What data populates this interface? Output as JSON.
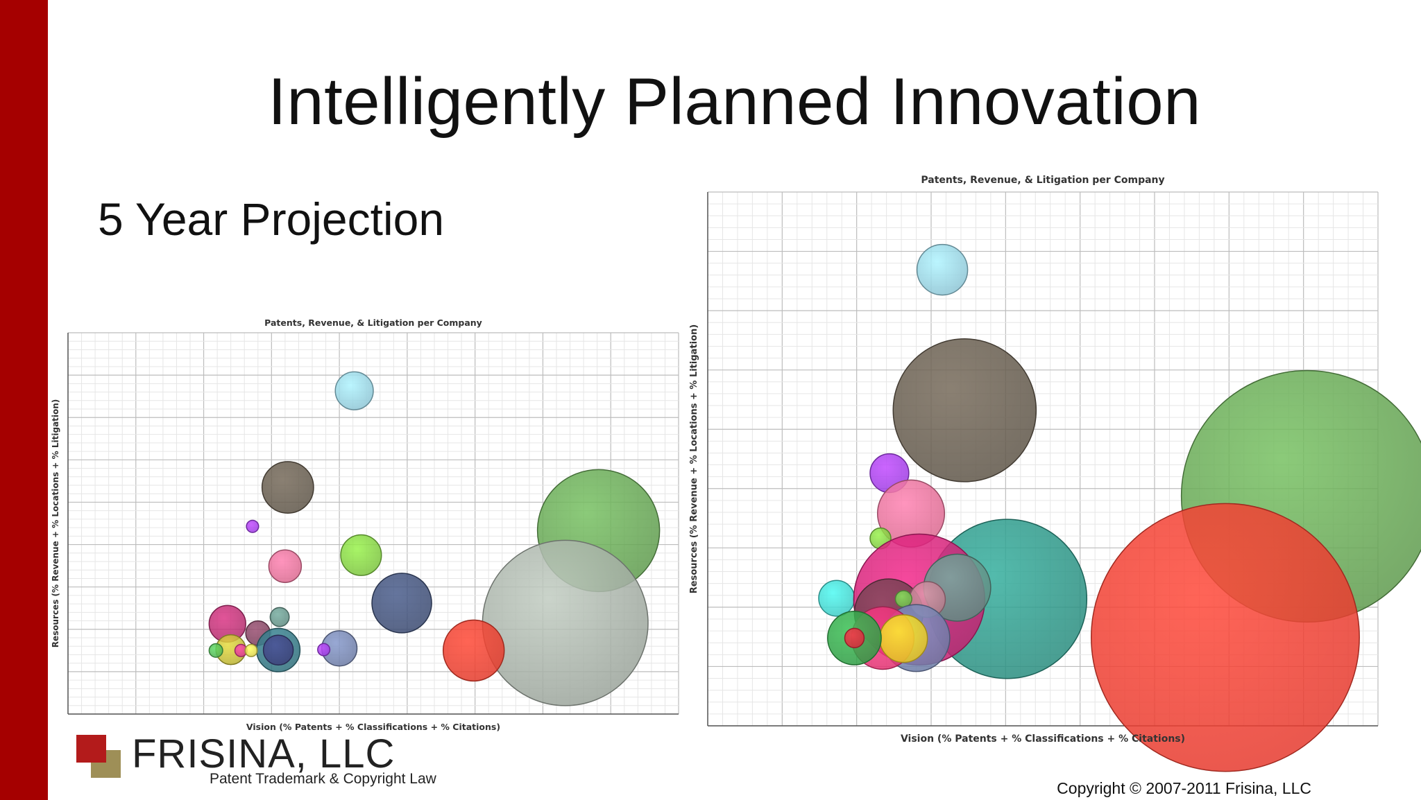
{
  "slide": {
    "title": "Intelligently Planned Innovation",
    "subtitle": "5 Year Projection",
    "copyright": "Copyright © 2007-2011 Frisina, LLC"
  },
  "logo": {
    "name": "FRISINA, LLC",
    "tagline": "Patent Trademark & Copyright Law"
  },
  "colors": {
    "accent_bar": "#a50000",
    "logo_red": "#b31b1b",
    "logo_gold": "#9e8f57"
  },
  "chart_data": [
    {
      "type": "scatter",
      "variant": "bubble",
      "title": "Patents, Revenue, & Litigation per Company",
      "xlabel": "Vision (% Patents + % Classifications + % Citations)",
      "ylabel": "Resources (% Revenue + % Locations + % Litigation)",
      "xlim": [
        0,
        9
      ],
      "ylim": [
        0,
        9
      ],
      "grid": true,
      "tick_labels_shown": false,
      "points": [
        {
          "x": 4.22,
          "y": 7.63,
          "size": 0.28,
          "color": "#8cc3d3"
        },
        {
          "x": 3.24,
          "y": 5.35,
          "size": 0.38,
          "color": "#5e5548"
        },
        {
          "x": 2.72,
          "y": 4.43,
          "size": 0.09,
          "color": "#9b3be0"
        },
        {
          "x": 4.32,
          "y": 3.75,
          "size": 0.3,
          "color": "#7ac23d"
        },
        {
          "x": 3.2,
          "y": 3.49,
          "size": 0.24,
          "color": "#d9688e"
        },
        {
          "x": 7.82,
          "y": 4.33,
          "size": 0.9,
          "color": "#5f9a4e"
        },
        {
          "x": 7.33,
          "y": 2.15,
          "size": 1.22,
          "color": "#9aa39a"
        },
        {
          "x": 4.92,
          "y": 2.62,
          "size": 0.44,
          "color": "#3b4a70"
        },
        {
          "x": 5.98,
          "y": 1.5,
          "size": 0.45,
          "color": "#e23a2b"
        },
        {
          "x": 4.0,
          "y": 1.55,
          "size": 0.26,
          "color": "#6b7aa3"
        },
        {
          "x": 3.12,
          "y": 2.29,
          "size": 0.14,
          "color": "#5e8a80"
        },
        {
          "x": 2.35,
          "y": 2.13,
          "size": 0.27,
          "color": "#b02b6b"
        },
        {
          "x": 2.8,
          "y": 1.91,
          "size": 0.18,
          "color": "#7a3e5a"
        },
        {
          "x": 3.1,
          "y": 1.51,
          "size": 0.32,
          "color": "#2f6e7a"
        },
        {
          "x": 3.1,
          "y": 1.51,
          "size": 0.22,
          "color": "#3b3f78"
        },
        {
          "x": 2.4,
          "y": 1.52,
          "size": 0.22,
          "color": "#b8b032"
        },
        {
          "x": 2.18,
          "y": 1.5,
          "size": 0.1,
          "color": "#4caf50"
        },
        {
          "x": 2.55,
          "y": 1.5,
          "size": 0.09,
          "color": "#d63a8a"
        },
        {
          "x": 2.7,
          "y": 1.5,
          "size": 0.09,
          "color": "#d9d04a"
        },
        {
          "x": 3.77,
          "y": 1.52,
          "size": 0.09,
          "color": "#9b3be0"
        }
      ]
    },
    {
      "type": "scatter",
      "variant": "bubble",
      "title": "Patents, Revenue, & Litigation per Company",
      "xlabel": "Vision (% Patents + % Classifications + % Citations)",
      "ylabel": "Resources (% Revenue + % Locations + % Litigation)",
      "xlim": [
        0,
        9
      ],
      "ylim": [
        0,
        9
      ],
      "grid": true,
      "tick_labels_shown": false,
      "points": [
        {
          "x": 3.15,
          "y": 7.69,
          "size": 0.34,
          "color": "#8cc3d3"
        },
        {
          "x": 3.45,
          "y": 5.32,
          "size": 0.96,
          "color": "#5e5548"
        },
        {
          "x": 2.44,
          "y": 4.26,
          "size": 0.26,
          "color": "#9b3be0"
        },
        {
          "x": 2.73,
          "y": 3.58,
          "size": 0.45,
          "color": "#d9688e"
        },
        {
          "x": 2.32,
          "y": 3.16,
          "size": 0.14,
          "color": "#7ac23d"
        },
        {
          "x": 8.05,
          "y": 3.87,
          "size": 1.69,
          "color": "#5f9a4e"
        },
        {
          "x": 6.95,
          "y": 1.49,
          "size": 1.8,
          "color": "#e53a2e"
        },
        {
          "x": 4.02,
          "y": 2.14,
          "size": 1.07,
          "color": "#2a8c7e"
        },
        {
          "x": 1.73,
          "y": 2.15,
          "size": 0.24,
          "color": "#3ec9c2"
        },
        {
          "x": 2.84,
          "y": 2.13,
          "size": 0.88,
          "color": "#c2206f"
        },
        {
          "x": 3.35,
          "y": 2.33,
          "size": 0.45,
          "color": "#5e8a80"
        },
        {
          "x": 2.43,
          "y": 1.9,
          "size": 0.46,
          "color": "#6b3a4a"
        },
        {
          "x": 2.95,
          "y": 2.13,
          "size": 0.24,
          "color": "#b57a8a"
        },
        {
          "x": 2.63,
          "y": 2.14,
          "size": 0.11,
          "color": "#6dbb4a"
        },
        {
          "x": 2.8,
          "y": 1.48,
          "size": 0.45,
          "color": "#6b7aa3"
        },
        {
          "x": 2.35,
          "y": 1.48,
          "size": 0.42,
          "color": "#e0306f"
        },
        {
          "x": 2.63,
          "y": 1.47,
          "size": 0.32,
          "color": "#e4c323"
        },
        {
          "x": 1.97,
          "y": 1.48,
          "size": 0.36,
          "color": "#2e9a43"
        },
        {
          "x": 1.97,
          "y": 1.48,
          "size": 0.13,
          "color": "#d8283a"
        }
      ]
    }
  ]
}
